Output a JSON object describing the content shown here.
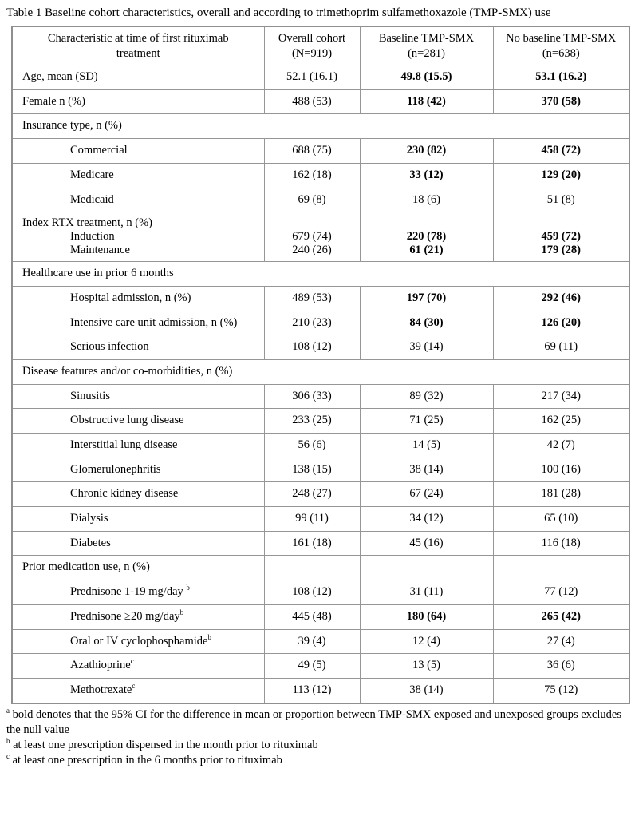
{
  "title": "Table 1 Baseline cohort characteristics, overall and according to trimethoprim sulfamethoxazole (TMP-SMX) use",
  "header": {
    "characteristic": {
      "line1": "Characteristic at time of first rituximab",
      "line2": "treatment"
    },
    "overall": {
      "line1": "Overall cohort",
      "line2": "(N=919)"
    },
    "baseline": {
      "line1": "Baseline TMP-SMX",
      "line2": "(n=281)"
    },
    "no_baseline": {
      "line1": "No baseline TMP-SMX",
      "line2": "(n=638)"
    }
  },
  "table": {
    "rows": [
      {
        "type": "data",
        "label": "Age, mean (SD)",
        "indent": 0,
        "values": [
          "52.1 (16.1)",
          "49.8 (15.5)",
          "53.1 (16.2)"
        ],
        "bold": [
          false,
          true,
          true
        ]
      },
      {
        "type": "data",
        "label": "Female n (%)",
        "indent": 0,
        "values": [
          "488 (53)",
          "118 (42)",
          "370 (58)"
        ],
        "bold": [
          false,
          true,
          true
        ]
      },
      {
        "type": "section",
        "label": "Insurance type, n (%)"
      },
      {
        "type": "data",
        "label": "Commercial",
        "indent": 1,
        "values": [
          "688 (75)",
          "230 (82)",
          "458 (72)"
        ],
        "bold": [
          false,
          true,
          true
        ]
      },
      {
        "type": "data",
        "label": "Medicare",
        "indent": 1,
        "values": [
          "162 (18)",
          "33 (12)",
          "129 (20)"
        ],
        "bold": [
          false,
          true,
          true
        ]
      },
      {
        "type": "data",
        "label": "Medicaid",
        "indent": 1,
        "values": [
          "69 (8)",
          "18 (6)",
          "51 (8)"
        ],
        "bold": [
          false,
          false,
          false
        ]
      },
      {
        "type": "multi",
        "label": "Index RTX treatment, n (%)",
        "sublabels": [
          "Induction",
          "Maintenance"
        ],
        "values": [
          [
            "679 (74)",
            "240 (26)"
          ],
          [
            "220 (78)",
            "61 (21)"
          ],
          [
            "459 (72)",
            "179 (28)"
          ]
        ],
        "bold": [
          false,
          true,
          true
        ]
      },
      {
        "type": "section",
        "label": "Healthcare use in prior 6 months"
      },
      {
        "type": "data",
        "label": "Hospital admission, n (%)",
        "indent": 1,
        "values": [
          "489 (53)",
          "197 (70)",
          "292 (46)"
        ],
        "bold": [
          false,
          true,
          true
        ]
      },
      {
        "type": "data",
        "label": "Intensive care unit admission, n (%)",
        "indent": 1,
        "values": [
          "210 (23)",
          "84 (30)",
          "126 (20)"
        ],
        "bold": [
          false,
          true,
          true
        ]
      },
      {
        "type": "data",
        "label": "Serious infection",
        "indent": 1,
        "values": [
          "108 (12)",
          "39 (14)",
          "69 (11)"
        ],
        "bold": [
          false,
          false,
          false
        ]
      },
      {
        "type": "section",
        "label": "Disease features and/or co-morbidities, n (%)"
      },
      {
        "type": "data",
        "label": "Sinusitis",
        "indent": 1,
        "values": [
          "306 (33)",
          "89 (32)",
          "217 (34)"
        ],
        "bold": [
          false,
          false,
          false
        ]
      },
      {
        "type": "data",
        "label": "Obstructive lung disease",
        "indent": 1,
        "values": [
          "233 (25)",
          "71 (25)",
          "162 (25)"
        ],
        "bold": [
          false,
          false,
          false
        ]
      },
      {
        "type": "data",
        "label": "Interstitial lung disease",
        "indent": 1,
        "values": [
          "56 (6)",
          "14 (5)",
          "42 (7)"
        ],
        "bold": [
          false,
          false,
          false
        ]
      },
      {
        "type": "data",
        "label": "Glomerulonephritis",
        "indent": 1,
        "values": [
          "138 (15)",
          "38 (14)",
          "100 (16)"
        ],
        "bold": [
          false,
          false,
          false
        ]
      },
      {
        "type": "data",
        "label": "Chronic kidney disease",
        "indent": 1,
        "values": [
          "248 (27)",
          "67 (24)",
          "181 (28)"
        ],
        "bold": [
          false,
          false,
          false
        ]
      },
      {
        "type": "data",
        "label": "Dialysis",
        "indent": 1,
        "values": [
          "99 (11)",
          "34 (12)",
          "65 (10)"
        ],
        "bold": [
          false,
          false,
          false
        ]
      },
      {
        "type": "data",
        "label": "Diabetes",
        "indent": 1,
        "values": [
          "161 (18)",
          "45 (16)",
          "116 (18)"
        ],
        "bold": [
          false,
          false,
          false
        ]
      },
      {
        "type": "section-cells",
        "label": "Prior medication use, n (%)"
      },
      {
        "type": "data",
        "label": "Prednisone 1-19 mg/day",
        "sup": "b",
        "sup_space": true,
        "indent": 1,
        "values": [
          "108 (12)",
          "31 (11)",
          "77 (12)"
        ],
        "bold": [
          false,
          false,
          false
        ]
      },
      {
        "type": "data",
        "label": "Prednisone ≥20 mg/day",
        "sup": "b",
        "indent": 1,
        "values": [
          "445 (48)",
          "180 (64)",
          "265 (42)"
        ],
        "bold": [
          false,
          true,
          true
        ]
      },
      {
        "type": "data",
        "label": "Oral or IV cyclophosphamide",
        "sup": "b",
        "indent": 1,
        "values": [
          "39 (4)",
          "12 (4)",
          "27 (4)"
        ],
        "bold": [
          false,
          false,
          false
        ]
      },
      {
        "type": "data",
        "label": "Azathioprine",
        "sup": "c",
        "indent": 1,
        "values": [
          "49 (5)",
          "13 (5)",
          "36 (6)"
        ],
        "bold": [
          false,
          false,
          false
        ]
      },
      {
        "type": "data",
        "label": "Methotrexate",
        "sup": "c",
        "indent": 1,
        "values": [
          "113 (12)",
          "38 (14)",
          "75 (12)"
        ],
        "bold": [
          false,
          false,
          false
        ]
      }
    ]
  },
  "footnotes": [
    {
      "marker": "a",
      "text": "bold denotes that the 95% CI for the difference in mean or proportion between TMP-SMX exposed and unexposed groups excludes the null value"
    },
    {
      "marker": "b",
      "text": "at least one prescription dispensed in the month prior to rituximab"
    },
    {
      "marker": "c",
      "text": "at least one prescription in the 6 months prior to rituximab"
    }
  ]
}
